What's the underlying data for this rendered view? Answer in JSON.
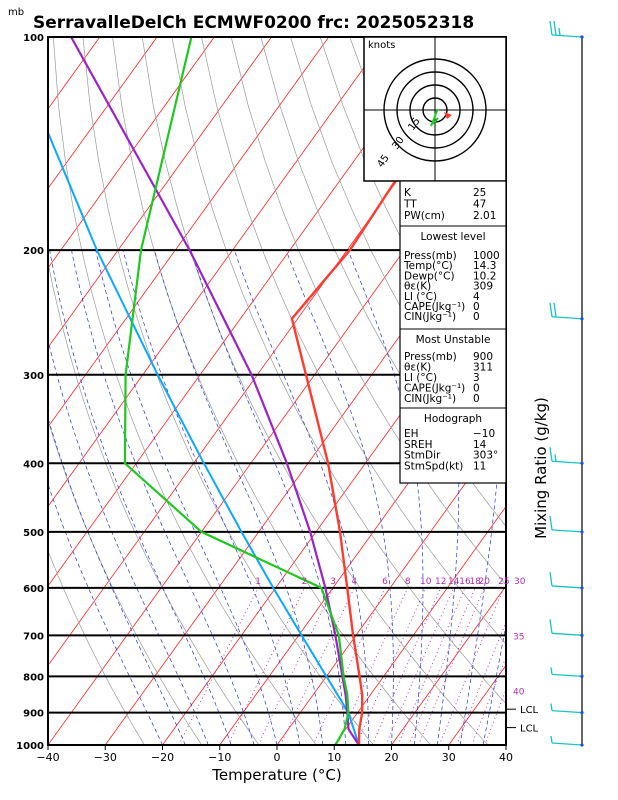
{
  "header": {
    "unit_label": "mb",
    "title": "SerravalleDelCh ECMWF0200 frc: 2025052318"
  },
  "chart_data": {
    "type": "skew-t",
    "xlabel": "Temperature (°C)",
    "ylabel": "mb",
    "right_axis_label": "Mixing Ratio (g/kg)",
    "xlim": [
      -40,
      40
    ],
    "pressure_levels": [
      100,
      200,
      300,
      400,
      500,
      600,
      700,
      800,
      900,
      1000
    ],
    "x_ticks": [
      -40,
      -30,
      -20,
      -10,
      0,
      10,
      20,
      30,
      40
    ],
    "temperature_profile": [
      {
        "p": 1000,
        "t": 14.3
      },
      {
        "p": 950,
        "t": 12.4
      },
      {
        "p": 900,
        "t": 10.8
      },
      {
        "p": 850,
        "t": 8.6
      },
      {
        "p": 800,
        "t": 5.8
      },
      {
        "p": 700,
        "t": -0.5
      },
      {
        "p": 600,
        "t": -7.5
      },
      {
        "p": 500,
        "t": -15.8
      },
      {
        "p": 400,
        "t": -26.5
      },
      {
        "p": 300,
        "t": -41.5
      },
      {
        "p": 250,
        "t": -51.0
      },
      {
        "p": 200,
        "t": -49.5
      },
      {
        "p": 150,
        "t": -50.5
      },
      {
        "p": 100,
        "t": -52.5
      }
    ],
    "dewpoint_profile": [
      {
        "p": 1000,
        "t": 10.2
      },
      {
        "p": 950,
        "t": 9.8
      },
      {
        "p": 900,
        "t": 8.4
      },
      {
        "p": 850,
        "t": 6.0
      },
      {
        "p": 800,
        "t": 3.0
      },
      {
        "p": 700,
        "t": -3.0
      },
      {
        "p": 600,
        "t": -12.0
      },
      {
        "p": 500,
        "t": -40.0
      },
      {
        "p": 400,
        "t": -62.0
      },
      {
        "p": 300,
        "t": -73.0
      },
      {
        "p": 200,
        "t": -86.0
      },
      {
        "p": 100,
        "t": -104.0
      }
    ],
    "parcel_profile": [
      {
        "p": 1000,
        "t": 14.3
      },
      {
        "p": 950,
        "t": 10.5
      },
      {
        "p": 900,
        "t": 8.2
      },
      {
        "p": 850,
        "t": 5.7
      },
      {
        "p": 800,
        "t": 2.8
      },
      {
        "p": 700,
        "t": -3.6
      },
      {
        "p": 600,
        "t": -11.3
      },
      {
        "p": 500,
        "t": -21.0
      },
      {
        "p": 400,
        "t": -33.7
      },
      {
        "p": 300,
        "t": -51.0
      },
      {
        "p": 200,
        "t": -77.5
      },
      {
        "p": 100,
        "t": -125.0
      }
    ],
    "dry_adiabat_profile": [
      {
        "p": 1000,
        "t": 14.3
      },
      {
        "p": 900,
        "t": 8.4
      },
      {
        "p": 800,
        "t": 0.0
      },
      {
        "p": 700,
        "t": -9.5
      },
      {
        "p": 600,
        "t": -20.4
      },
      {
        "p": 500,
        "t": -33.0
      },
      {
        "p": 400,
        "t": -48.2
      },
      {
        "p": 300,
        "t": -67.4
      },
      {
        "p": 200,
        "t": -93.7
      },
      {
        "p": 100,
        "t": -136.0
      }
    ],
    "mixing_ratio_lines": [
      "1",
      "2",
      "3",
      "4",
      "6",
      "8",
      "10",
      "12",
      "14",
      "16",
      "18",
      "20",
      "25",
      "30",
      "35",
      "40"
    ],
    "lcl_labels": [
      "LCL",
      "LCL"
    ],
    "lcl_pressures": [
      890,
      945
    ],
    "wind_barbs": [
      {
        "p": 100,
        "speed_kt": 25
      },
      {
        "p": 250,
        "speed_kt": 20
      },
      {
        "p": 400,
        "speed_kt": 15
      },
      {
        "p": 500,
        "speed_kt": 10
      },
      {
        "p": 600,
        "speed_kt": 10
      },
      {
        "p": 700,
        "speed_kt": 10
      },
      {
        "p": 800,
        "speed_kt": 5
      },
      {
        "p": 900,
        "speed_kt": 5
      },
      {
        "p": 1000,
        "speed_kt": 5
      }
    ]
  },
  "hodograph": {
    "units": "knots",
    "ring_labels": [
      "15",
      "30",
      "45"
    ]
  },
  "indices": {
    "basic": [
      {
        "label": "K",
        "value": "25"
      },
      {
        "label": "TT",
        "value": "47"
      },
      {
        "label": "PW(cm)",
        "value": "2.01"
      }
    ],
    "lowest_level": {
      "title": "Lowest level",
      "rows": [
        {
          "label": "Press(mb)",
          "value": "1000"
        },
        {
          "label": "Temp(°C)",
          "value": "14.3"
        },
        {
          "label": "Dewp(°C)",
          "value": "10.2"
        },
        {
          "label": "θε(K)",
          "value": "309"
        },
        {
          "label": "LI (°C)",
          "value": "4"
        },
        {
          "label": "CAPE(Jkg⁻¹)",
          "value": "0"
        },
        {
          "label": "CIN(Jkg⁻¹)",
          "value": "0"
        }
      ]
    },
    "most_unstable": {
      "title": "Most Unstable",
      "rows": [
        {
          "label": "Press(mb)",
          "value": "900"
        },
        {
          "label": "θε(K)",
          "value": "311"
        },
        {
          "label": "LI (°C)",
          "value": "3"
        },
        {
          "label": "CAPE(Jkg⁻¹)",
          "value": "0"
        },
        {
          "label": "CIN(Jkg⁻¹)",
          "value": "0"
        }
      ]
    },
    "hodograph_box": {
      "title": "Hodograph",
      "rows": [
        {
          "label": "EH",
          "value": "−10"
        },
        {
          "label": "SREH",
          "value": "14"
        },
        {
          "label": "StmDir",
          "value": "303°"
        },
        {
          "label": "StmSpd(kt)",
          "value": "11"
        }
      ]
    }
  },
  "colors": {
    "temperature": "#ff3b2f",
    "dewpoint": "#1ec81e",
    "parcel": "#9b22c8",
    "dry_adiabat_trace": "#0aa8ff",
    "isotherm": "#ff2020",
    "dry_adiabat": "#9a9a9a",
    "moist_adiabat": "#2233dd",
    "mixing_ratio": "#b030b0",
    "wind_barb": "#17c4c4"
  }
}
